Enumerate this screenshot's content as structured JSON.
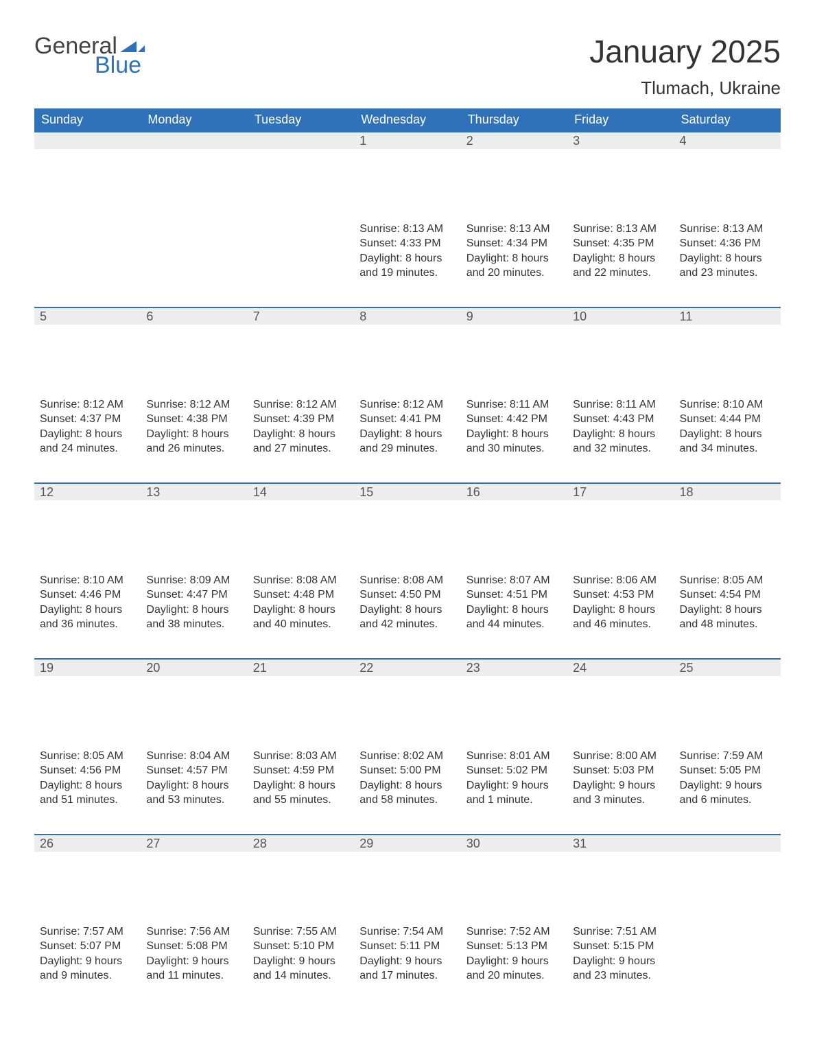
{
  "logo": {
    "text1": "General",
    "text2": "Blue",
    "color_general": "#444444",
    "color_blue": "#2f72b9"
  },
  "title": "January 2025",
  "location": "Tlumach, Ukraine",
  "colors": {
    "header_bg": "#2f72b9",
    "header_text": "#ffffff",
    "daynum_bg": "#ededed",
    "daynum_border": "#2f72b9",
    "body_text": "#333333",
    "page_bg": "#ffffff"
  },
  "fonts": {
    "title_size_pt": 34,
    "location_size_pt": 20,
    "dayheader_size_pt": 14,
    "body_size_pt": 12
  },
  "day_headers": [
    "Sunday",
    "Monday",
    "Tuesday",
    "Wednesday",
    "Thursday",
    "Friday",
    "Saturday"
  ],
  "weeks": [
    [
      null,
      null,
      null,
      {
        "n": "1",
        "sunrise": "8:13 AM",
        "sunset": "4:33 PM",
        "daylight": "8 hours and 19 minutes."
      },
      {
        "n": "2",
        "sunrise": "8:13 AM",
        "sunset": "4:34 PM",
        "daylight": "8 hours and 20 minutes."
      },
      {
        "n": "3",
        "sunrise": "8:13 AM",
        "sunset": "4:35 PM",
        "daylight": "8 hours and 22 minutes."
      },
      {
        "n": "4",
        "sunrise": "8:13 AM",
        "sunset": "4:36 PM",
        "daylight": "8 hours and 23 minutes."
      }
    ],
    [
      {
        "n": "5",
        "sunrise": "8:12 AM",
        "sunset": "4:37 PM",
        "daylight": "8 hours and 24 minutes."
      },
      {
        "n": "6",
        "sunrise": "8:12 AM",
        "sunset": "4:38 PM",
        "daylight": "8 hours and 26 minutes."
      },
      {
        "n": "7",
        "sunrise": "8:12 AM",
        "sunset": "4:39 PM",
        "daylight": "8 hours and 27 minutes."
      },
      {
        "n": "8",
        "sunrise": "8:12 AM",
        "sunset": "4:41 PM",
        "daylight": "8 hours and 29 minutes."
      },
      {
        "n": "9",
        "sunrise": "8:11 AM",
        "sunset": "4:42 PM",
        "daylight": "8 hours and 30 minutes."
      },
      {
        "n": "10",
        "sunrise": "8:11 AM",
        "sunset": "4:43 PM",
        "daylight": "8 hours and 32 minutes."
      },
      {
        "n": "11",
        "sunrise": "8:10 AM",
        "sunset": "4:44 PM",
        "daylight": "8 hours and 34 minutes."
      }
    ],
    [
      {
        "n": "12",
        "sunrise": "8:10 AM",
        "sunset": "4:46 PM",
        "daylight": "8 hours and 36 minutes."
      },
      {
        "n": "13",
        "sunrise": "8:09 AM",
        "sunset": "4:47 PM",
        "daylight": "8 hours and 38 minutes."
      },
      {
        "n": "14",
        "sunrise": "8:08 AM",
        "sunset": "4:48 PM",
        "daylight": "8 hours and 40 minutes."
      },
      {
        "n": "15",
        "sunrise": "8:08 AM",
        "sunset": "4:50 PM",
        "daylight": "8 hours and 42 minutes."
      },
      {
        "n": "16",
        "sunrise": "8:07 AM",
        "sunset": "4:51 PM",
        "daylight": "8 hours and 44 minutes."
      },
      {
        "n": "17",
        "sunrise": "8:06 AM",
        "sunset": "4:53 PM",
        "daylight": "8 hours and 46 minutes."
      },
      {
        "n": "18",
        "sunrise": "8:05 AM",
        "sunset": "4:54 PM",
        "daylight": "8 hours and 48 minutes."
      }
    ],
    [
      {
        "n": "19",
        "sunrise": "8:05 AM",
        "sunset": "4:56 PM",
        "daylight": "8 hours and 51 minutes."
      },
      {
        "n": "20",
        "sunrise": "8:04 AM",
        "sunset": "4:57 PM",
        "daylight": "8 hours and 53 minutes."
      },
      {
        "n": "21",
        "sunrise": "8:03 AM",
        "sunset": "4:59 PM",
        "daylight": "8 hours and 55 minutes."
      },
      {
        "n": "22",
        "sunrise": "8:02 AM",
        "sunset": "5:00 PM",
        "daylight": "8 hours and 58 minutes."
      },
      {
        "n": "23",
        "sunrise": "8:01 AM",
        "sunset": "5:02 PM",
        "daylight": "9 hours and 1 minute."
      },
      {
        "n": "24",
        "sunrise": "8:00 AM",
        "sunset": "5:03 PM",
        "daylight": "9 hours and 3 minutes."
      },
      {
        "n": "25",
        "sunrise": "7:59 AM",
        "sunset": "5:05 PM",
        "daylight": "9 hours and 6 minutes."
      }
    ],
    [
      {
        "n": "26",
        "sunrise": "7:57 AM",
        "sunset": "5:07 PM",
        "daylight": "9 hours and 9 minutes."
      },
      {
        "n": "27",
        "sunrise": "7:56 AM",
        "sunset": "5:08 PM",
        "daylight": "9 hours and 11 minutes."
      },
      {
        "n": "28",
        "sunrise": "7:55 AM",
        "sunset": "5:10 PM",
        "daylight": "9 hours and 14 minutes."
      },
      {
        "n": "29",
        "sunrise": "7:54 AM",
        "sunset": "5:11 PM",
        "daylight": "9 hours and 17 minutes."
      },
      {
        "n": "30",
        "sunrise": "7:52 AM",
        "sunset": "5:13 PM",
        "daylight": "9 hours and 20 minutes."
      },
      {
        "n": "31",
        "sunrise": "7:51 AM",
        "sunset": "5:15 PM",
        "daylight": "9 hours and 23 minutes."
      },
      null
    ]
  ],
  "labels": {
    "sunrise": "Sunrise: ",
    "sunset": "Sunset: ",
    "daylight": "Daylight: "
  }
}
